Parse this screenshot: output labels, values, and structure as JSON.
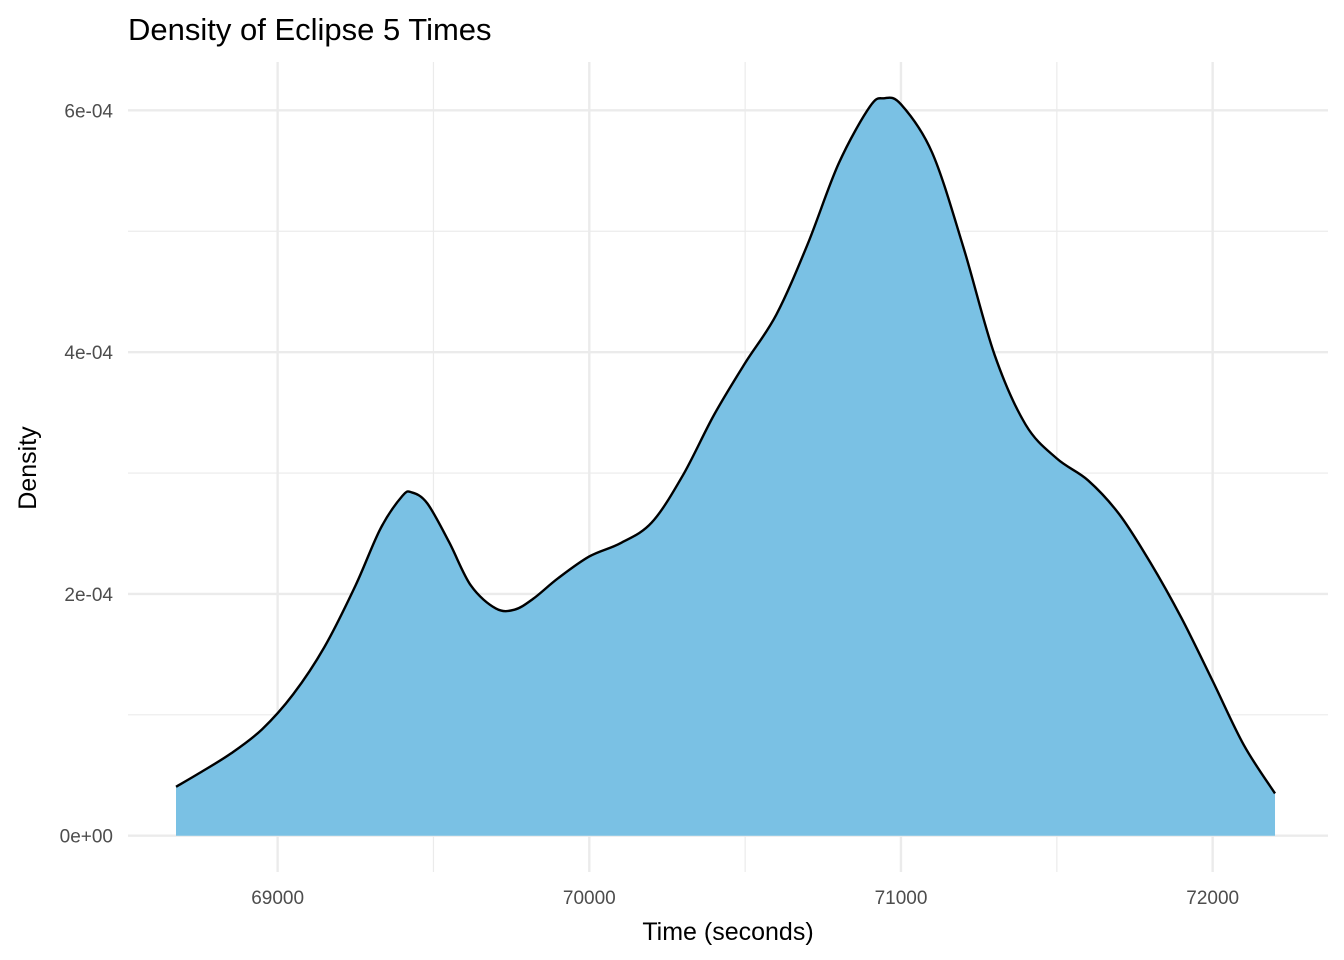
{
  "chart_data": {
    "type": "area",
    "title": "Density of Eclipse 5 Times",
    "xlabel": "Time (seconds)",
    "ylabel": "Density",
    "xlim": [
      68520,
      72370
    ],
    "ylim": [
      -3e-05,
      0.00064
    ],
    "x_ticks": [
      69000,
      70000,
      71000,
      72000
    ],
    "x_tick_labels": [
      "69000",
      "70000",
      "71000",
      "72000"
    ],
    "y_ticks": [
      0,
      0.0002,
      0.0004,
      0.0006
    ],
    "y_tick_labels": [
      "0e+00",
      "2e-04",
      "4e-04",
      "6e-04"
    ],
    "y_minor_ticks": [
      0.0001,
      0.0003,
      0.0005
    ],
    "x_minor_ticks": [
      69500,
      70500,
      71500
    ],
    "grid": true,
    "legend": "none",
    "colors": {
      "fill": "#7ac1e4",
      "line": "#000000",
      "grid": "#ebebeb"
    },
    "series": [
      {
        "x": [
          68674,
          68750,
          68850,
          68950,
          69050,
          69150,
          69250,
          69330,
          69400,
          69430,
          69480,
          69550,
          69620,
          69700,
          69760,
          69820,
          69900,
          70000,
          70100,
          70200,
          70300,
          70400,
          70500,
          70600,
          70700,
          70800,
          70900,
          70945,
          71000,
          71100,
          71200,
          71300,
          71400,
          71500,
          71600,
          71700,
          71800,
          71900,
          72000,
          72100,
          72200
        ],
        "values": [
          4.05e-05,
          5.2e-05,
          6.8e-05,
          8.8e-05,
          0.000117,
          0.000156,
          0.000207,
          0.000254,
          0.000281,
          0.000284,
          0.000275,
          0.000243,
          0.000207,
          0.000188,
          0.000187,
          0.000196,
          0.000213,
          0.000231,
          0.000242,
          0.000259,
          0.000298,
          0.000348,
          0.000391,
          0.000431,
          0.000489,
          0.000556,
          0.000603,
          0.00061,
          0.000605,
          0.000565,
          0.000487,
          0.000398,
          0.00034,
          0.000312,
          0.000294,
          0.000266,
          0.000226,
          0.00018,
          0.000128,
          7.5e-05,
          3.5e-05
        ]
      }
    ]
  }
}
